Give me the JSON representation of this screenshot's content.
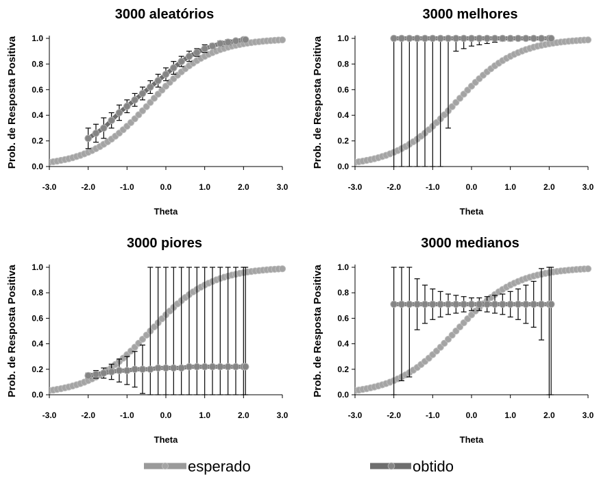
{
  "chart_data": [
    {
      "type": "line",
      "title": "3000 aleatórios",
      "xlabel": "Theta",
      "ylabel": "Prob. de Resposta Positiva",
      "xlim": [
        -3.0,
        3.0
      ],
      "ylim": [
        0.0,
        1.0
      ],
      "xticks": [
        "-3.0",
        "-2.0",
        "-1.0",
        "0.0",
        "1.0",
        "2.0",
        "3.0"
      ],
      "yticks": [
        "0.0",
        "0.2",
        "0.4",
        "0.6",
        "0.8",
        "1.0"
      ],
      "series": [
        {
          "name": "esperado",
          "curve": {
            "a": 1.3,
            "b": -0.4
          },
          "x_range": [
            -3.0,
            3.0
          ]
        },
        {
          "name": "obtido",
          "x": [
            -2.0,
            -1.8,
            -1.6,
            -1.4,
            -1.2,
            -1.0,
            -0.8,
            -0.6,
            -0.4,
            -0.2,
            0.0,
            0.2,
            0.4,
            0.6,
            0.8,
            1.0,
            1.2,
            1.4,
            1.6,
            1.8,
            2.0,
            2.05
          ],
          "y": [
            0.22,
            0.26,
            0.3,
            0.36,
            0.42,
            0.47,
            0.52,
            0.57,
            0.62,
            0.67,
            0.72,
            0.77,
            0.82,
            0.86,
            0.89,
            0.92,
            0.94,
            0.96,
            0.97,
            0.98,
            0.99,
            0.99
          ],
          "err": [
            0.08,
            0.07,
            0.08,
            0.06,
            0.06,
            0.05,
            0.05,
            0.05,
            0.05,
            0.05,
            0.05,
            0.05,
            0.04,
            0.04,
            0.03,
            0.03,
            0.02,
            0.02,
            0.02,
            0.01,
            0.01,
            0.01
          ]
        }
      ]
    },
    {
      "type": "line",
      "title": "3000 melhores",
      "xlabel": "Theta",
      "ylabel": "Prob. de Resposta Positiva",
      "xlim": [
        -3.0,
        3.0
      ],
      "ylim": [
        0.0,
        1.0
      ],
      "xticks": [
        "-3.0",
        "-2.0",
        "-1.0",
        "0.0",
        "1.0",
        "2.0",
        "3.0"
      ],
      "yticks": [
        "0.0",
        "0.2",
        "0.4",
        "0.6",
        "0.8",
        "1.0"
      ],
      "series": [
        {
          "name": "esperado",
          "curve": {
            "a": 1.3,
            "b": -0.4
          },
          "x_range": [
            -3.0,
            3.0
          ]
        },
        {
          "name": "obtido",
          "x": [
            -2.0,
            -1.8,
            -1.6,
            -1.4,
            -1.2,
            -1.0,
            -0.8,
            -0.6,
            -0.4,
            -0.2,
            0.0,
            0.2,
            0.4,
            0.6,
            0.8,
            1.0,
            1.2,
            1.4,
            1.6,
            1.8,
            2.0,
            2.05
          ],
          "y": [
            1,
            1,
            1,
            1,
            1,
            1,
            1,
            1,
            1,
            1,
            1,
            1,
            1,
            1,
            1,
            1,
            1,
            1,
            1,
            1,
            1,
            1
          ],
          "err": [
            1.0,
            1.0,
            1.0,
            1.0,
            1.0,
            1.0,
            1.0,
            0.7,
            0.1,
            0.08,
            0.06,
            0.05,
            0.04,
            0.03,
            0.02,
            0.02,
            0.01,
            0.01,
            0.01,
            0.01,
            0.01,
            0.01
          ]
        }
      ]
    },
    {
      "type": "line",
      "title": "3000 piores",
      "xlabel": "Theta",
      "ylabel": "Prob. de Resposta Positiva",
      "xlim": [
        -3.0,
        3.0
      ],
      "ylim": [
        0.0,
        1.0
      ],
      "xticks": [
        "-3.0",
        "-2.0",
        "-1.0",
        "0.0",
        "1.0",
        "2.0",
        "3.0"
      ],
      "yticks": [
        "0.0",
        "0.2",
        "0.4",
        "0.6",
        "0.8",
        "1.0"
      ],
      "series": [
        {
          "name": "esperado",
          "curve": {
            "a": 1.3,
            "b": -0.4
          },
          "x_range": [
            -3.0,
            3.0
          ]
        },
        {
          "name": "obtido",
          "x": [
            -2.0,
            -1.8,
            -1.6,
            -1.4,
            -1.2,
            -1.0,
            -0.8,
            -0.6,
            -0.4,
            -0.2,
            0.0,
            0.2,
            0.4,
            0.6,
            0.8,
            1.0,
            1.2,
            1.4,
            1.6,
            1.8,
            2.0,
            2.05
          ],
          "y": [
            0.15,
            0.16,
            0.17,
            0.18,
            0.19,
            0.19,
            0.2,
            0.2,
            0.2,
            0.21,
            0.21,
            0.21,
            0.21,
            0.22,
            0.22,
            0.22,
            0.22,
            0.22,
            0.22,
            0.22,
            0.22,
            0.22
          ],
          "err": [
            0.02,
            0.03,
            0.04,
            0.06,
            0.09,
            0.11,
            0.14,
            0.19,
            0.8,
            0.8,
            0.8,
            0.8,
            0.8,
            0.8,
            0.8,
            0.8,
            0.8,
            0.8,
            0.8,
            0.8,
            0.8,
            0.8
          ]
        }
      ]
    },
    {
      "type": "line",
      "title": "3000 medianos",
      "xlabel": "Theta",
      "ylabel": "Prob. de Resposta Positiva",
      "xlim": [
        -3.0,
        3.0
      ],
      "ylim": [
        0.0,
        1.0
      ],
      "xticks": [
        "-3.0",
        "-2.0",
        "-1.0",
        "0.0",
        "1.0",
        "2.0",
        "3.0"
      ],
      "yticks": [
        "0.0",
        "0.2",
        "0.4",
        "0.6",
        "0.8",
        "1.0"
      ],
      "series": [
        {
          "name": "esperado",
          "curve": {
            "a": 1.3,
            "b": -0.4
          },
          "x_range": [
            -3.0,
            3.0
          ]
        },
        {
          "name": "obtido",
          "x": [
            -2.0,
            -1.8,
            -1.6,
            -1.4,
            -1.2,
            -1.0,
            -0.8,
            -0.6,
            -0.4,
            -0.2,
            0.0,
            0.2,
            0.4,
            0.6,
            0.8,
            1.0,
            1.2,
            1.4,
            1.6,
            1.8,
            2.0,
            2.05
          ],
          "y": [
            0.71,
            0.71,
            0.71,
            0.71,
            0.71,
            0.71,
            0.71,
            0.71,
            0.71,
            0.71,
            0.71,
            0.71,
            0.71,
            0.71,
            0.71,
            0.71,
            0.71,
            0.71,
            0.71,
            0.71,
            0.71,
            0.71
          ],
          "err": [
            0.71,
            0.6,
            0.57,
            0.2,
            0.15,
            0.12,
            0.1,
            0.08,
            0.07,
            0.06,
            0.05,
            0.05,
            0.06,
            0.07,
            0.08,
            0.1,
            0.12,
            0.15,
            0.18,
            0.28,
            0.71,
            0.71
          ]
        }
      ]
    }
  ],
  "legend": [
    {
      "label": "esperado",
      "color": "#9a9a9a"
    },
    {
      "label": "obtido",
      "color": "#6e6e6e"
    }
  ],
  "colors": {
    "esperado": "#9a9a9a",
    "obtido": "#6e6e6e",
    "errorbar": "#000000"
  }
}
